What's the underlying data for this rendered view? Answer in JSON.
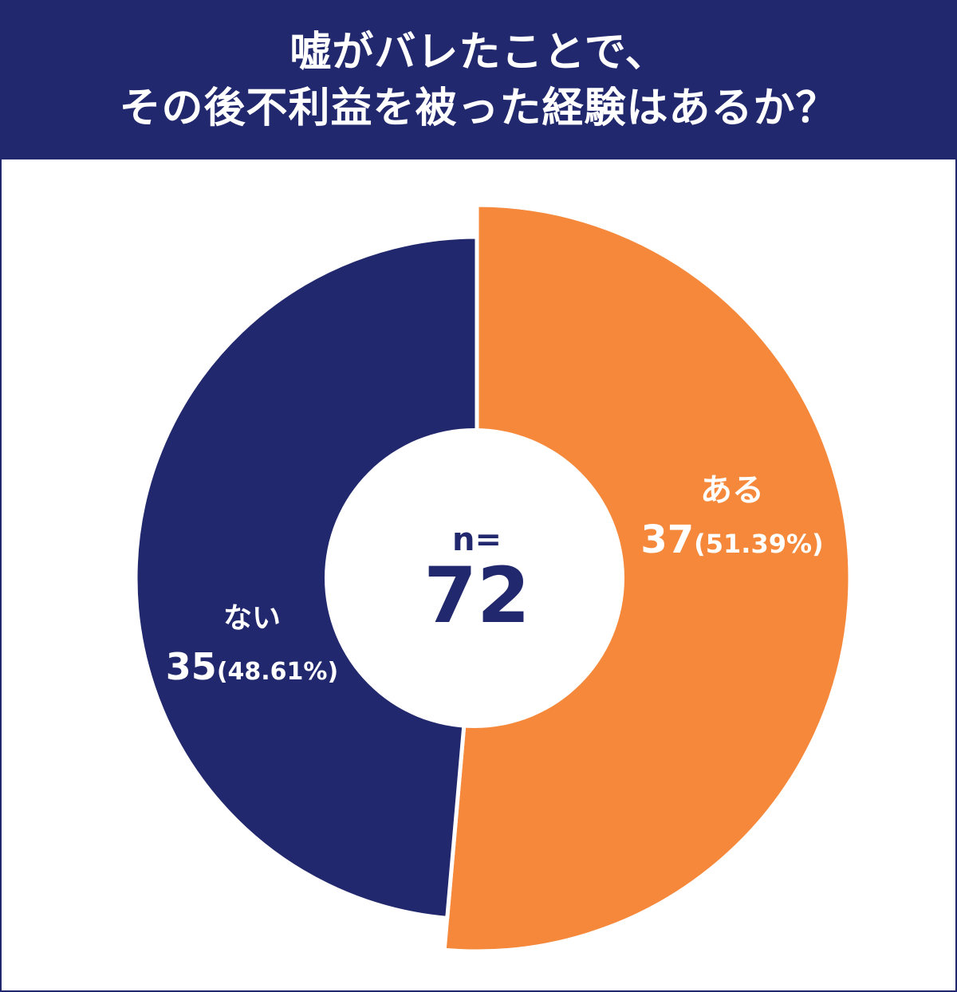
{
  "title": {
    "line1": "嘘がバレたことで、",
    "line2": "その後不利益を被った経験はあるか？"
  },
  "center": {
    "label": "n=",
    "value": "72"
  },
  "colors": {
    "navy": "#22286d",
    "orange": "#f5883a",
    "white": "#ffffff"
  },
  "chart_data": {
    "type": "pie",
    "total": 72,
    "slices": [
      {
        "label": "ある",
        "count": 37,
        "count_text": "37",
        "percent_text": "(51.39%)",
        "percent": 51.39,
        "color": "#f5883a"
      },
      {
        "label": "ない",
        "count": 35,
        "count_text": "35",
        "percent_text": "(48.61%)",
        "percent": 48.61,
        "color": "#22286d"
      }
    ]
  }
}
